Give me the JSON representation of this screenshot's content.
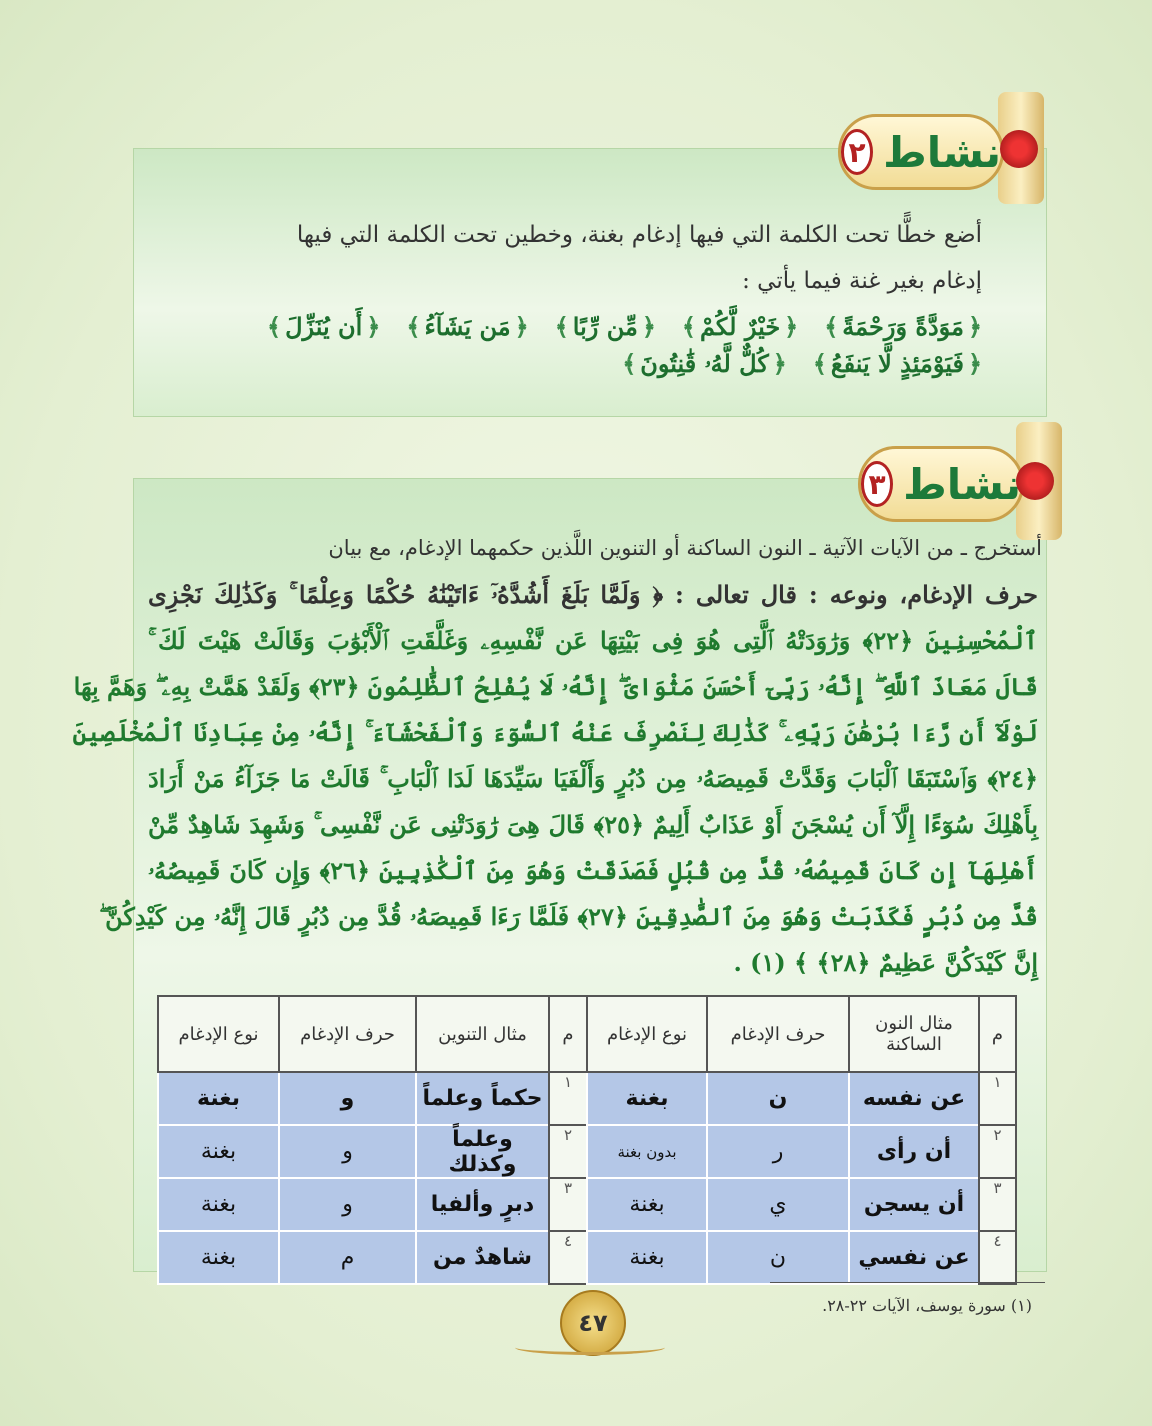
{
  "activity2": {
    "title": "نشاط",
    "number": "٢",
    "instruction": [
      "أضع خطًّا تحت الكلمة التي فيها إدغام بغنة، وخطين تحت الكلمة التي فيها",
      "إدغام بغير غنة فيما يأتي :"
    ],
    "words": [
      "مَوَدَّةً وَرَحْمَةً",
      "خَيْرٌ لَّكُمْ",
      "مِّن رِّبًا",
      "مَن يَشَآءُ",
      "أَن يُنَزِّلَ",
      "فَيَوْمَئِذٍ لَّا يَنفَعُ",
      "كُلٌّ لَّهُۥ قَٰنِتُونَ"
    ]
  },
  "activity3": {
    "title": "نشاط",
    "number": "٣",
    "instruction": "أستخرج ـ من الآيات الآتية ـ النون الساكنة أو التنوين اللَّذين حكمهما الإدغام، مع بيان",
    "verse_lines": [
      "حرف الإدغام، ونوعه : قال تعالى : ﴿ وَلَمَّا بَلَغَ أَشُدَّهُۥٓ ءَاتَيْنَٰهُ حُكْمًا وَعِلْمًا ۚ وَكَذَٰلِكَ نَجْزِى",
      "ٱلْمُحْسِنِينَ ﴿٢٢﴾ وَرَٰوَدَتْهُ ٱلَّتِى هُوَ فِى بَيْتِهَا عَن نَّفْسِهِۦ وَغَلَّقَتِ ٱلْأَبْوَٰبَ وَقَالَتْ هَيْتَ لَكَ ۚ",
      "قَالَ مَعَاذَ ٱللَّهِ ۖ إِنَّهُۥ رَبِّىٓ أَحْسَنَ مَثْوَاىَ ۖ إِنَّهُۥ لَا يُفْلِحُ ٱلظَّٰلِمُونَ ﴿٢٣﴾ وَلَقَدْ هَمَّتْ بِهِۦ ۖ وَهَمَّ بِهَا",
      "لَوْلَآ أَن رَّءَا بُرْهَٰنَ رَبِّهِۦ ۚ كَذَٰلِكَ لِنَصْرِفَ عَنْهُ ٱلسُّوٓءَ وَٱلْفَحْشَآءَ ۚ إِنَّهُۥ مِنْ عِبَادِنَا ٱلْمُخْلَصِينَ",
      "﴿٢٤﴾ وَٱسْتَبَقَا ٱلْبَابَ وَقَدَّتْ قَمِيصَهُۥ مِن دُبُرٍ وَأَلْفَيَا سَيِّدَهَا لَدَا ٱلْبَابِ ۚ قَالَتْ مَا جَزَآءُ مَنْ أَرَادَ",
      "بِأَهْلِكَ سُوٓءًا إِلَّآ أَن يُسْجَنَ أَوْ عَذَابٌ أَلِيمٌ ﴿٢٥﴾ قَالَ هِىَ رَٰوَدَتْنِى عَن نَّفْسِى ۚ وَشَهِدَ شَاهِدٌ مِّنْ",
      "أَهْلِهَآ إِن كَانَ قَمِيصُهُۥ قُدَّ مِن قُبُلٍ فَصَدَقَتْ وَهُوَ مِنَ ٱلْكَٰذِبِينَ ﴿٢٦﴾ وَإِن كَانَ قَمِيصُهُۥ",
      "قُدَّ مِن دُبُرٍ فَكَذَبَتْ وَهُوَ مِنَ ٱلصَّٰدِقِينَ ﴿٢٧﴾ فَلَمَّا رَءَا قَمِيصَهُۥ قُدَّ مِن دُبُرٍ قَالَ إِنَّهُۥ مِن كَيْدِكُنَّ ۖ",
      "إِنَّ كَيْدَكُنَّ عَظِيمٌ ﴿٢٨﴾ ﴾ (١) ."
    ],
    "table": {
      "headers": [
        "م",
        "مثال النون الساكنة",
        "حرف الإدغام",
        "نوع الإدغام",
        "م",
        "مثال التنوين",
        "حرف الإدغام",
        "نوع الإدغام"
      ],
      "rows": [
        [
          "١",
          "عن نفسه",
          "ن",
          "بغنة",
          "١",
          "حكماً وعلماً",
          "و",
          "بغنة"
        ],
        [
          "٢",
          "أن رأى",
          "ر",
          "بدون بغنة",
          "٢",
          "وعلماً وكذلك",
          "و",
          "بغنة"
        ],
        [
          "٣",
          "أن يسجن",
          "ي",
          "بغنة",
          "٣",
          "دبرٍ وألفيا",
          "و",
          "بغنة"
        ],
        [
          "٤",
          "عن نفسي",
          "ن",
          "بغنة",
          "٤",
          "شاهدٌ من",
          "م",
          "بغنة"
        ]
      ]
    }
  },
  "footnote": "(١) سورة يوسف، الآيات ٢٢-٢٨.",
  "page_number": "٤٧"
}
